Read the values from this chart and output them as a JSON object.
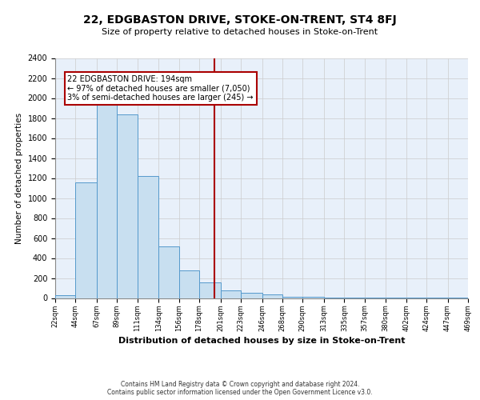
{
  "title": "22, EDGBASTON DRIVE, STOKE-ON-TRENT, ST4 8FJ",
  "subtitle": "Size of property relative to detached houses in Stoke-on-Trent",
  "xlabel": "Distribution of detached houses by size in Stoke-on-Trent",
  "ylabel": "Number of detached properties",
  "bin_edges": [
    22,
    44,
    67,
    89,
    111,
    134,
    156,
    178,
    201,
    223,
    246,
    268,
    290,
    313,
    335,
    357,
    380,
    402,
    424,
    447,
    469
  ],
  "bin_counts": [
    30,
    1155,
    1950,
    1840,
    1220,
    515,
    275,
    155,
    80,
    50,
    40,
    15,
    10,
    5,
    3,
    2,
    2,
    1,
    1,
    1
  ],
  "property_size": 194,
  "bar_facecolor": "#c8dff0",
  "bar_edgecolor": "#5599cc",
  "grid_color": "#cccccc",
  "bg_color": "#e8f0fa",
  "vline_color": "#aa0000",
  "annotation_title": "22 EDGBASTON DRIVE: 194sqm",
  "annotation_line1": "← 97% of detached houses are smaller (7,050)",
  "annotation_line2": "3% of semi-detached houses are larger (245) →",
  "annotation_box_edgecolor": "#aa0000",
  "footer_line1": "Contains HM Land Registry data © Crown copyright and database right 2024.",
  "footer_line2": "Contains public sector information licensed under the Open Government Licence v3.0.",
  "ylim": [
    0,
    2400
  ],
  "yticks": [
    0,
    200,
    400,
    600,
    800,
    1000,
    1200,
    1400,
    1600,
    1800,
    2000,
    2200,
    2400
  ],
  "tick_labels": [
    "22sqm",
    "44sqm",
    "67sqm",
    "89sqm",
    "111sqm",
    "134sqm",
    "156sqm",
    "178sqm",
    "201sqm",
    "223sqm",
    "246sqm",
    "268sqm",
    "290sqm",
    "313sqm",
    "335sqm",
    "357sqm",
    "380sqm",
    "402sqm",
    "424sqm",
    "447sqm",
    "469sqm"
  ],
  "title_fontsize": 10,
  "subtitle_fontsize": 8,
  "ylabel_fontsize": 7.5,
  "xlabel_fontsize": 8,
  "ytick_fontsize": 7,
  "xtick_fontsize": 6,
  "footer_fontsize": 5.5,
  "ann_fontsize": 7
}
